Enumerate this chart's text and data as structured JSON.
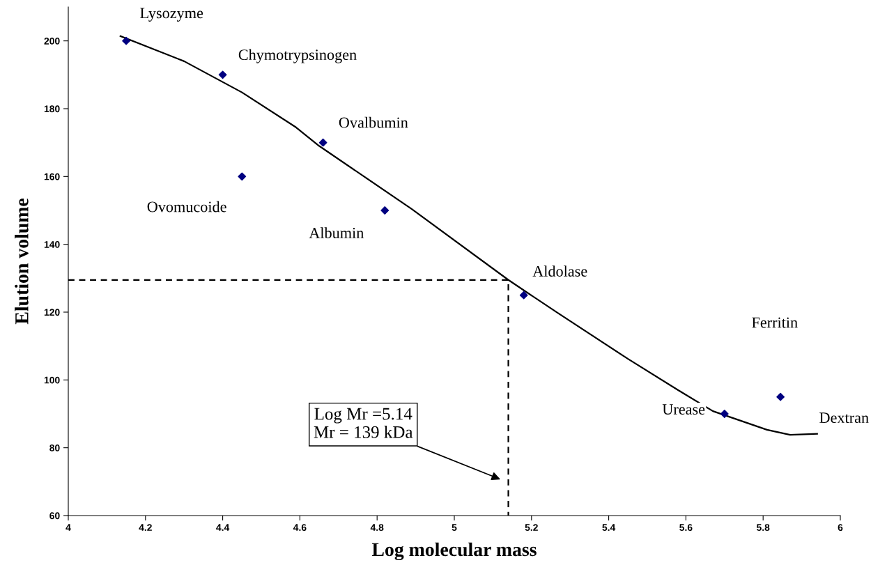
{
  "chart_data": {
    "type": "scatter",
    "xlabel": "Log molecular mass",
    "ylabel": "Elution volume",
    "xlim": [
      4,
      6
    ],
    "xticks": [
      4,
      4.2,
      4.4,
      4.6,
      4.8,
      5,
      5.2,
      5.4,
      5.6,
      5.8,
      6
    ],
    "ylim": [
      60,
      210
    ],
    "yticks": [
      60,
      80,
      100,
      120,
      140,
      160,
      180,
      200
    ],
    "grid": false,
    "legend": false,
    "series": [
      {
        "color": "#000080",
        "marker": "diamond",
        "x": [
          4.15,
          4.4,
          4.66,
          4.45,
          4.82,
          5.18,
          5.7,
          5.845
        ],
        "values": [
          200,
          190,
          170,
          160,
          150,
          125,
          90,
          95
        ]
      },
      {
        "type": "line",
        "color": "#000000",
        "marker": "none",
        "line_style": "solid",
        "x": [
          4.135,
          4.3,
          4.45,
          4.59,
          4.65,
          4.89,
          5.14,
          5.27,
          5.45,
          5.58,
          5.67,
          5.81,
          5.87,
          5.94
        ],
        "values": [
          201.4,
          194,
          184.8,
          174.5,
          169,
          150.4,
          129.5,
          119.6,
          106.2,
          97,
          90.8,
          85.3,
          83.8,
          84.1
        ]
      },
      {
        "type": "line",
        "color": "#000000",
        "marker": "none",
        "line_style": "dashed",
        "x": [
          4,
          5.14,
          5.14
        ],
        "values": [
          129.5,
          129.5,
          60
        ]
      }
    ],
    "annotations": [
      {
        "text": "Lysozyme",
        "x": 4.15,
        "y": 200
      },
      {
        "text": "Chymotrypsinogen",
        "x": 4.4,
        "y": 190
      },
      {
        "text": "Ovalbumin",
        "x": 4.66,
        "y": 170
      },
      {
        "text": "Ovomucoide",
        "x": 4.45,
        "y": 160
      },
      {
        "text": "Albumin",
        "x": 4.82,
        "y": 150
      },
      {
        "text": "Aldolase",
        "x": 5.18,
        "y": 125
      },
      {
        "text": "Urease",
        "x": 5.7,
        "y": 90
      },
      "Ferritin",
      {
        "text": "Dextran",
        "x": 5.94,
        "y": 84.1
      },
      "Log Mr =5.14\nMr = 139 kDa"
    ]
  }
}
